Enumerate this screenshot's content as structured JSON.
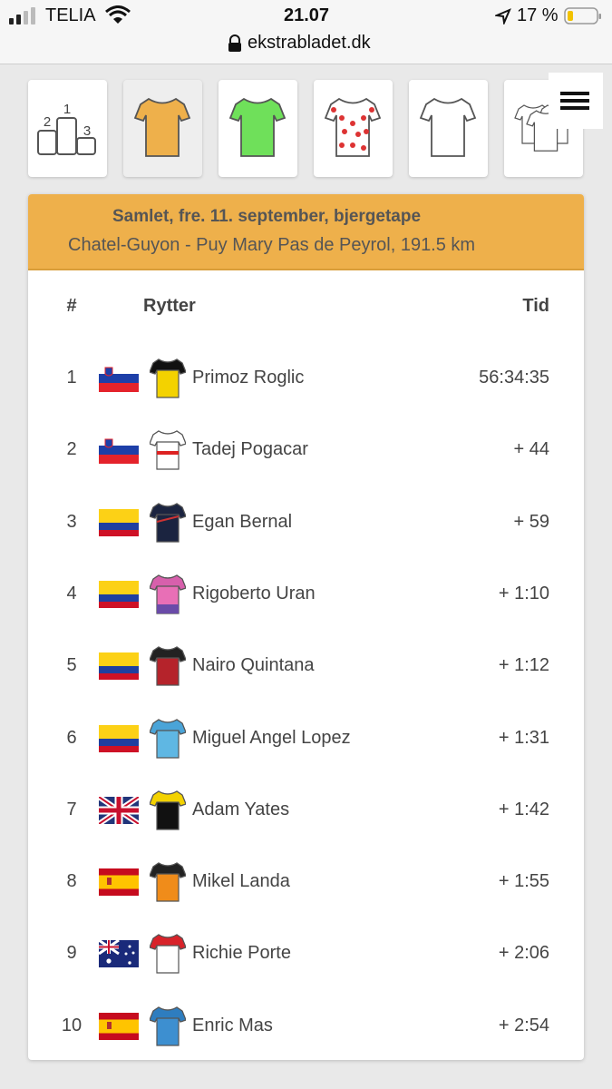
{
  "status_bar": {
    "carrier": "TELIA",
    "time": "21.07",
    "battery": "17 %",
    "url": "ekstrabladet.dk"
  },
  "tabs": {
    "podium_labels": [
      "1",
      "2",
      "3"
    ]
  },
  "header": {
    "title": "Samlet, fre. 11. september, bjergetape",
    "subtitle": "Chatel-Guyon - Puy Mary Pas de Peyrol, 191.5 km"
  },
  "table": {
    "columns": [
      "#",
      "Rytter",
      "Tid"
    ],
    "rows": [
      [
        1,
        "Primoz Roglic",
        "56:34:35"
      ],
      [
        2,
        "Tadej Pogacar",
        "+ 44"
      ],
      [
        3,
        "Egan Bernal",
        "+ 59"
      ],
      [
        4,
        "Rigoberto Uran",
        "+ 1:10"
      ],
      [
        5,
        "Nairo Quintana",
        "+ 1:12"
      ],
      [
        6,
        "Miguel Angel Lopez",
        "+ 1:31"
      ],
      [
        7,
        "Adam Yates",
        "+ 1:42"
      ],
      [
        8,
        "Mikel Landa",
        "+ 1:55"
      ],
      [
        9,
        "Richie Porte",
        "+ 2:06"
      ],
      [
        10,
        "Enric Mas",
        "+ 2:54"
      ]
    ]
  }
}
